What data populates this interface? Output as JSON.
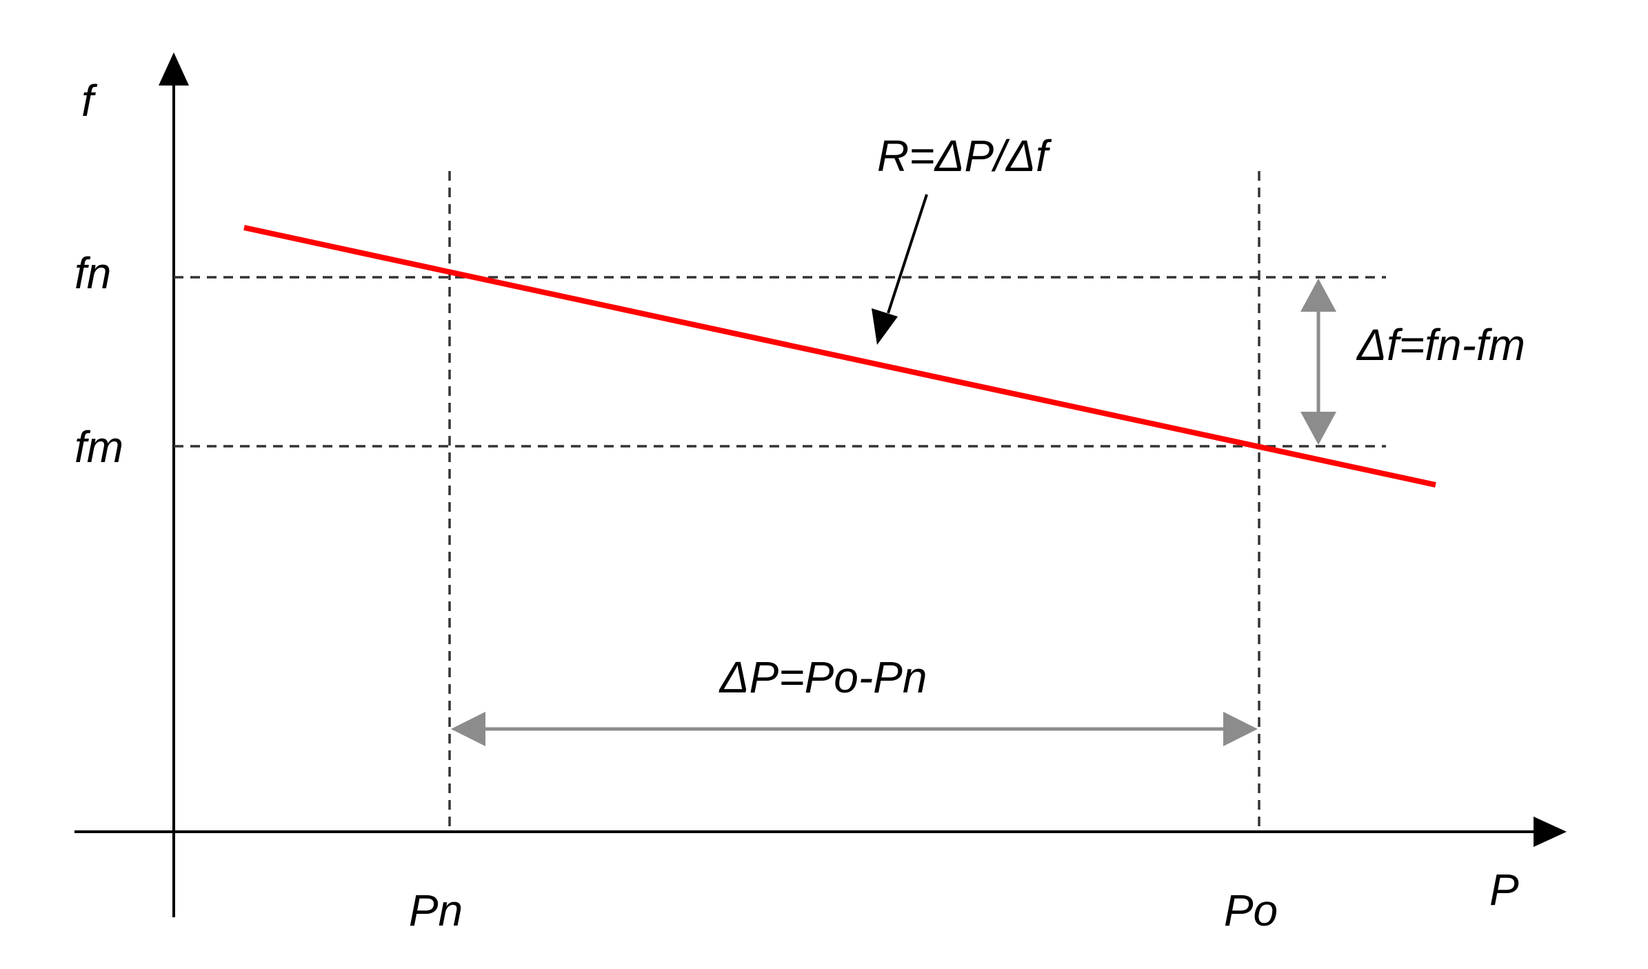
{
  "axes": {
    "y_label": "f",
    "x_label": "P"
  },
  "ticks": {
    "fn": "fn",
    "fm": "fm",
    "pn": "Pn",
    "po": "Po"
  },
  "annotations": {
    "droop": "R=ΔP/Δf",
    "delta_f": "Δf=fn-fm",
    "delta_p": "ΔP=Po-Pn"
  },
  "colors": {
    "droop_line": "#ff0000",
    "dimension_arrows": "#8c8c8c",
    "axes": "#000000",
    "guides": "#333333"
  }
}
